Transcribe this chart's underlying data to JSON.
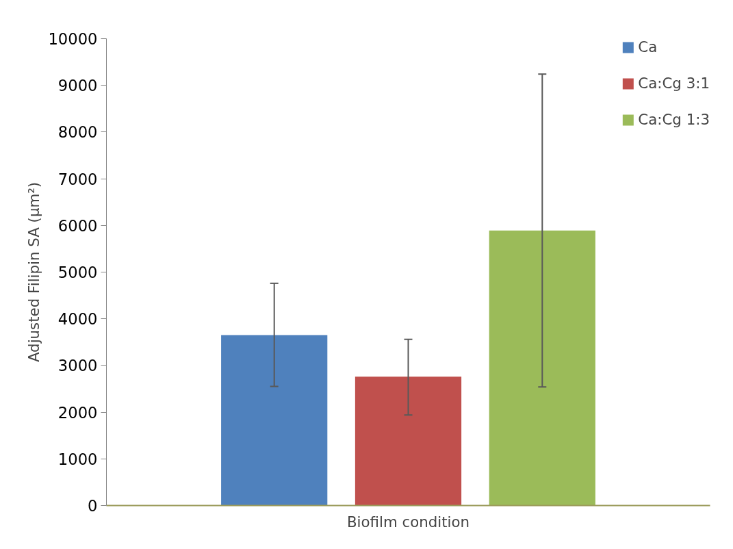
{
  "chart_data": {
    "type": "bar",
    "xlabel": "Biofilm condition",
    "ylabel": "Adjusted Filipin SA (µm²)",
    "categories": [
      null
    ],
    "series": [
      {
        "name": "Ca",
        "color": "#4f81bd",
        "values": [
          3650
        ],
        "errors": [
          [
            2550,
            4760
          ]
        ]
      },
      {
        "name": "Ca:Cg 3:1",
        "color": "#c0504d",
        "values": [
          2760
        ],
        "errors": [
          [
            1940,
            3560
          ]
        ]
      },
      {
        "name": "Ca:Cg 1:3",
        "color": "#9bbb59",
        "values": [
          5890
        ],
        "errors": [
          [
            2540,
            9240
          ]
        ]
      }
    ],
    "ylim": [
      0,
      10000
    ],
    "yticks": [
      0,
      1000,
      2000,
      3000,
      4000,
      5000,
      6000,
      7000,
      8000,
      9000,
      10000
    ],
    "grid": false,
    "legend": "top right",
    "tick_labels": "y"
  }
}
